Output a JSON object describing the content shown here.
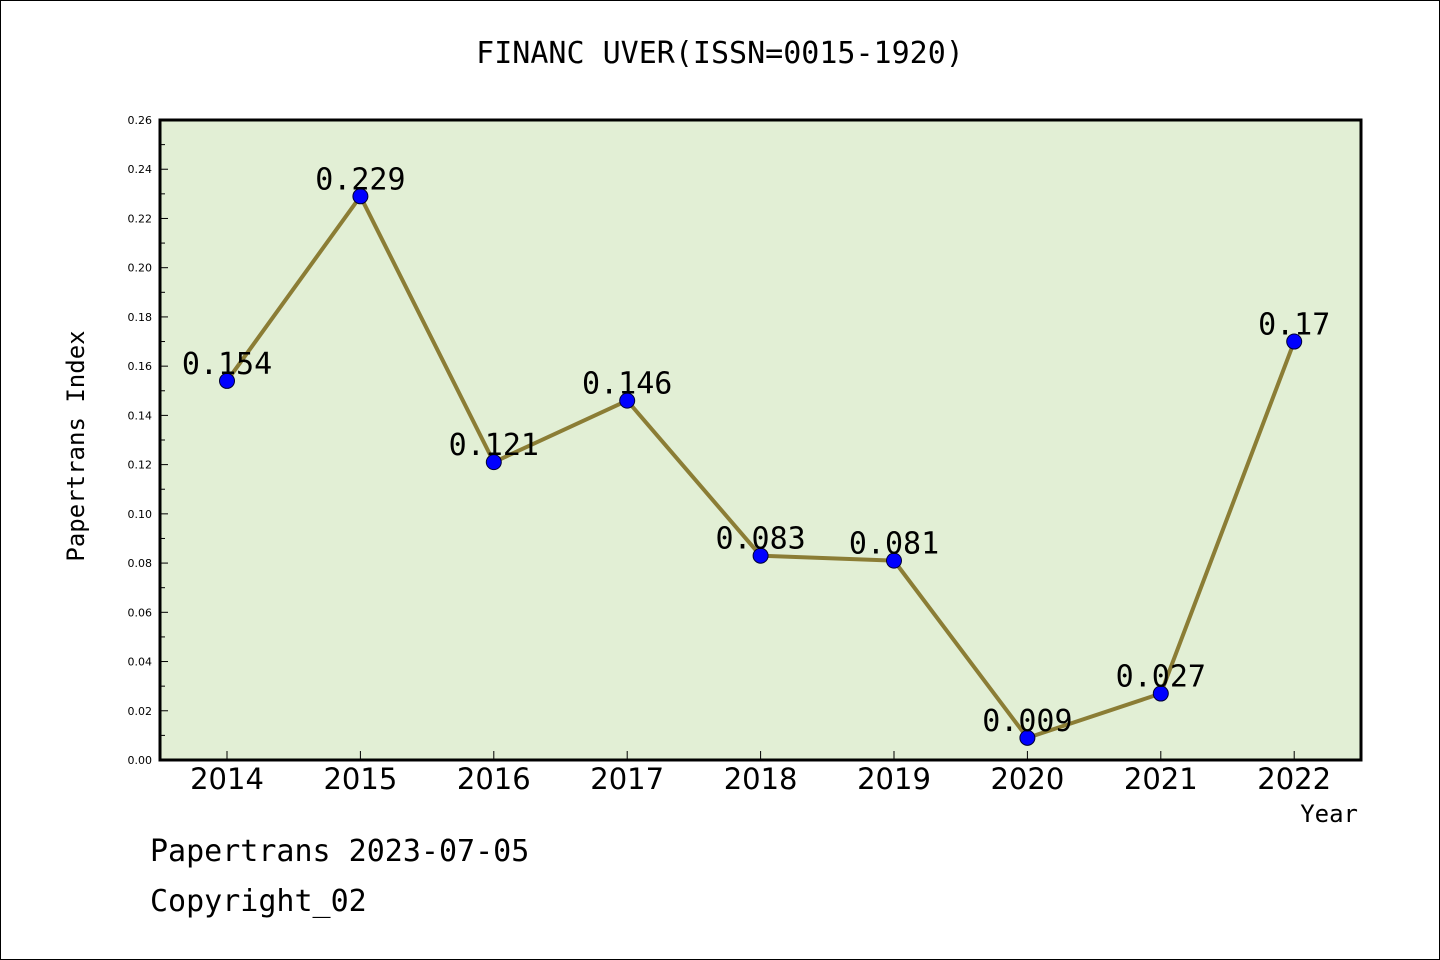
{
  "chart_data": {
    "type": "line",
    "title": "FINANC UVER(ISSN=0015-1920)",
    "xlabel": "Year",
    "ylabel": "Papertrans Index",
    "categories": [
      "2014",
      "2015",
      "2016",
      "2017",
      "2018",
      "2019",
      "2020",
      "2021",
      "2022"
    ],
    "values": [
      0.154,
      0.229,
      0.121,
      0.146,
      0.083,
      0.081,
      0.009,
      0.027,
      0.17
    ],
    "data_labels": [
      "0.154",
      "0.229",
      "0.121",
      "0.146",
      "0.083",
      "0.081",
      "0.009",
      "0.027",
      "0.17"
    ],
    "ylim": [
      0,
      0.26
    ],
    "y_ticks": [
      "0.00",
      "0.02",
      "0.04",
      "0.06",
      "0.08",
      "0.10",
      "0.12",
      "0.14",
      "0.16",
      "0.18",
      "0.20",
      "0.22",
      "0.24",
      "0.26"
    ],
    "grid": false,
    "legend": "none",
    "colors": {
      "plot_background": "#e2efd5",
      "line": "#8b7d35",
      "marker": "#0000ff"
    }
  },
  "footer": {
    "date_text": "Papertrans 2023-07-05",
    "copyright_text": "Copyright_02"
  }
}
